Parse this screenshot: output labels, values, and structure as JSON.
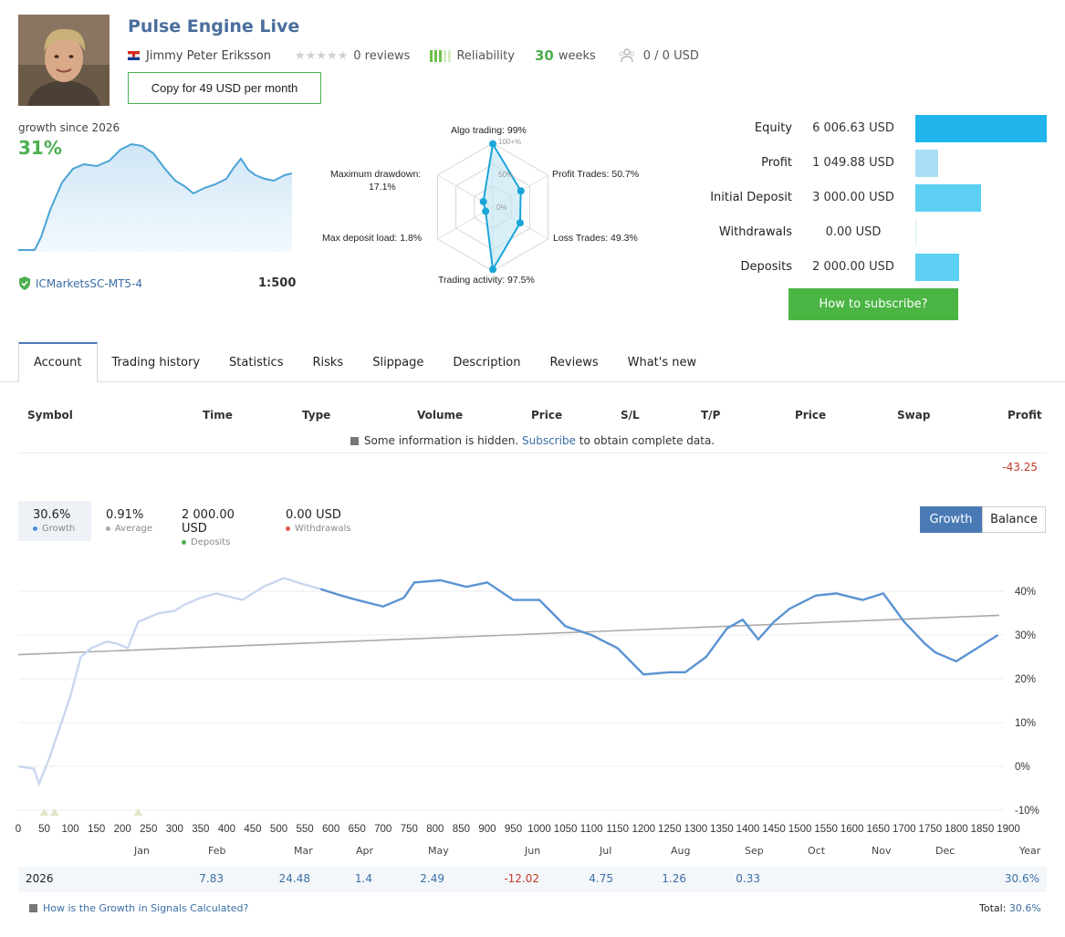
{
  "header": {
    "title": "Pulse Engine Live",
    "author": "Jimmy Peter Eriksson",
    "reviews": "0 reviews",
    "reliability_label": "Reliability",
    "weeks_value": "30",
    "weeks_label": "weeks",
    "subscribers": "0 / 0 USD",
    "copy_button": "Copy for 49 USD per month"
  },
  "summary": {
    "growth_since": "growth since 2026",
    "growth_pct": "31%",
    "broker": "ICMarketsSC-MT5-4",
    "leverage": "1:500"
  },
  "radar": {
    "labels": {
      "algo": "Algo trading: 99%",
      "profit": "Profit Trades: 50.7%",
      "loss": "Loss Trades: 49.3%",
      "activity": "Trading activity: 97.5%",
      "load": "Max deposit load: 1.8%",
      "drawdown_line1": "Maximum drawdown:",
      "drawdown_line2": "17.1%"
    },
    "scale": {
      "s100": "100+%",
      "s50": "50%",
      "s0": "0%"
    },
    "values": {
      "algo": 99,
      "profit": 50.7,
      "loss": 49.3,
      "activity": 97.5,
      "load": 1.8,
      "drawdown": 17.1
    }
  },
  "account": {
    "rows": [
      {
        "label": "Equity",
        "value": "6 006.63 USD",
        "amount": 6006.63,
        "color": "#1fb5ec"
      },
      {
        "label": "Profit",
        "value": "1 049.88 USD",
        "amount": 1049.88,
        "color": "#a9dff6"
      },
      {
        "label": "Initial Deposit",
        "value": "3 000.00 USD",
        "amount": 3000.0,
        "color": "#5ccff3"
      },
      {
        "label": "Withdrawals",
        "value": "0.00 USD",
        "amount": 0,
        "color": "#5ccff3"
      },
      {
        "label": "Deposits",
        "value": "2 000.00 USD",
        "amount": 2000.0,
        "color": "#5ccff3"
      }
    ],
    "subscribe_button": "How to subscribe?"
  },
  "tabs": [
    "Account",
    "Trading history",
    "Statistics",
    "Risks",
    "Slippage",
    "Description",
    "Reviews",
    "What's new"
  ],
  "table": {
    "headers": [
      "Symbol",
      "Time",
      "Type",
      "Volume",
      "Price",
      "S/L",
      "T/P",
      "Price",
      "Swap",
      "Profit"
    ],
    "hidden_before": "Some information is hidden.",
    "hidden_link": "Subscribe",
    "hidden_after": "to obtain complete data.",
    "total_profit": "-43.25"
  },
  "stats": [
    {
      "value": "30.6%",
      "label": "Growth",
      "color": "#4a90d9"
    },
    {
      "value": "0.91%",
      "label": "Average",
      "color": "#aaaaaa"
    },
    {
      "value": "2 000.00 USD",
      "label": "Deposits",
      "color": "#4caf50"
    },
    {
      "value": "0.00 USD",
      "label": "Withdrawals",
      "color": "#e05a4b"
    }
  ],
  "toggle": {
    "growth": "Growth",
    "balance": "Balance"
  },
  "chart_data": {
    "type": "line",
    "x_ticks": [
      0,
      50,
      100,
      150,
      200,
      250,
      300,
      350,
      400,
      450,
      500,
      550,
      600,
      650,
      700,
      750,
      800,
      850,
      900,
      950,
      1000,
      1050,
      1100,
      1150,
      1200,
      1250,
      1300,
      1350,
      1400,
      1450,
      1500,
      1550,
      1600,
      1650,
      1700,
      1750,
      1800,
      1850,
      1900
    ],
    "y_ticks": [
      "40%",
      "30%",
      "20%",
      "10%",
      "0%",
      "-10%"
    ],
    "ylim": [
      -10,
      40
    ],
    "xlim": [
      0,
      1900
    ],
    "series": [
      {
        "name": "Growth",
        "x": [
          0,
          30,
          40,
          60,
          80,
          100,
          120,
          140,
          170,
          190,
          210,
          230,
          270,
          300,
          320,
          350,
          380,
          430,
          470,
          510,
          550,
          580,
          620,
          650,
          700,
          740,
          760,
          810,
          860,
          900,
          950,
          1000,
          1050,
          1100,
          1150,
          1200,
          1250,
          1280,
          1320,
          1360,
          1390,
          1420,
          1450,
          1480,
          1530,
          1570,
          1620,
          1660,
          1700,
          1740,
          1760,
          1800,
          1840,
          1880
        ],
        "y": [
          0,
          -0.5,
          -4,
          2,
          9,
          16,
          25,
          27,
          28.5,
          28,
          27,
          33,
          35,
          35.5,
          37,
          38.5,
          39.5,
          38,
          41,
          43,
          41.5,
          40.5,
          39,
          38,
          36.5,
          38.5,
          42,
          42.5,
          41,
          42,
          38,
          38,
          32,
          30,
          27,
          21,
          21.5,
          21.5,
          25,
          31.5,
          33.5,
          29,
          33,
          36,
          39,
          39.5,
          38,
          39.5,
          33,
          28,
          26,
          24,
          27,
          30
        ]
      },
      {
        "name": "Average",
        "start": 25.5,
        "end": 34.5
      }
    ]
  },
  "months": [
    "Jan",
    "Feb",
    "Mar",
    "Apr",
    "May",
    "Jun",
    "Jul",
    "Aug",
    "Sep",
    "Oct",
    "Nov",
    "Dec",
    "Year"
  ],
  "year_row": {
    "year": "2026",
    "values": [
      "7.83",
      "24.48",
      "1.4",
      "2.49",
      "-12.02",
      "4.75",
      "1.26",
      "0.33"
    ],
    "total": "30.6%"
  },
  "footer": {
    "question": "How is the Growth in Signals Calculated?",
    "total_label": "Total:",
    "total_value": "30.6%"
  }
}
